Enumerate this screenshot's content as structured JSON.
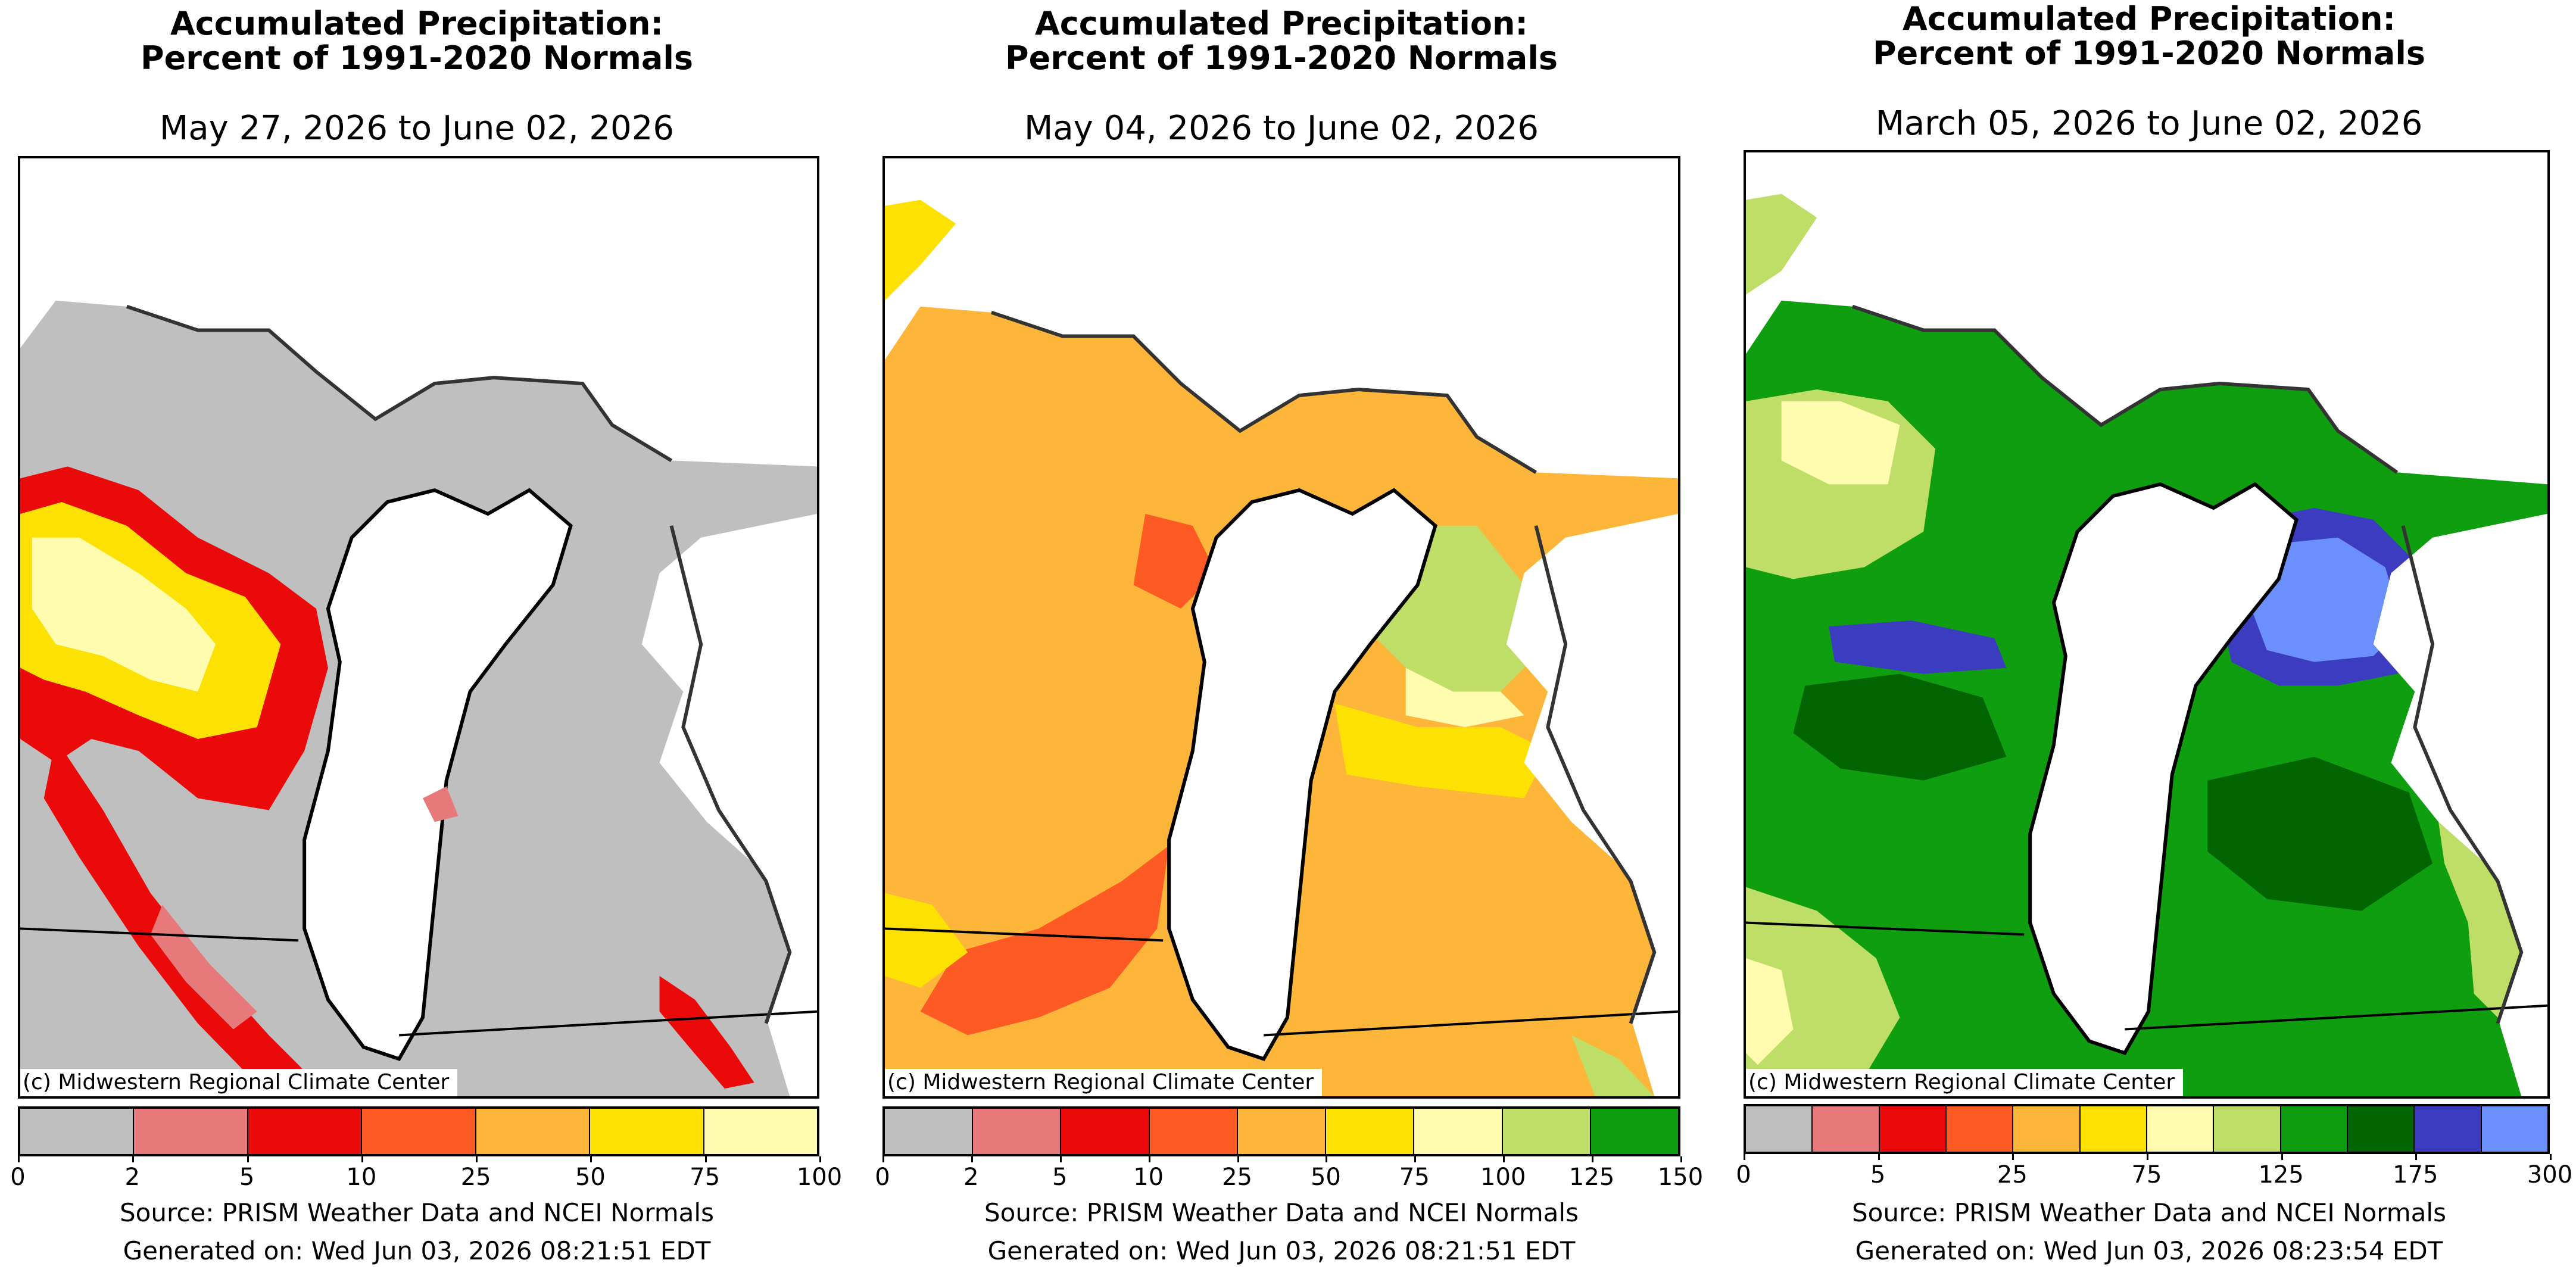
{
  "panels": [
    {
      "title_line1": "Accumulated Precipitation:",
      "title_line2": "Percent of 1991-2020 Normals",
      "date_range": "May 27, 2026 to June 02, 2026",
      "credit": "(c) Midwestern Regional Climate Center",
      "source": "Source: PRISM Weather Data and NCEI Normals",
      "generated": "Generated on: Wed Jun 03, 2026 08:21:51 EDT",
      "colorbar": {
        "colors": [
          "#bfbfbf",
          "#e8797a",
          "#ea0a0a",
          "#fe5b24",
          "#fdb53a",
          "#fde103",
          "#fffcaf"
        ],
        "tick_labels": [
          "0",
          "2",
          "5",
          "10",
          "25",
          "50",
          "75",
          "100"
        ]
      }
    },
    {
      "title_line1": "Accumulated Precipitation:",
      "title_line2": "Percent of 1991-2020 Normals",
      "date_range": "May 04, 2026 to June 02, 2026",
      "credit": "(c) Midwestern Regional Climate Center",
      "source": "Source: PRISM Weather Data and NCEI Normals",
      "generated": "Generated on: Wed Jun 03, 2026 08:21:51 EDT",
      "colorbar": {
        "colors": [
          "#bfbfbf",
          "#e8797a",
          "#ea0a0a",
          "#fe5b24",
          "#fdb53a",
          "#fde103",
          "#fffcaf",
          "#bede68",
          "#0f9e10"
        ],
        "tick_labels": [
          "0",
          "2",
          "5",
          "10",
          "25",
          "50",
          "75",
          "100",
          "125",
          "150"
        ]
      }
    },
    {
      "title_line1": "Accumulated Precipitation:",
      "title_line2": "Percent of 1991-2020 Normals",
      "date_range": "March 05, 2026 to June 02, 2026",
      "credit": "(c) Midwestern Regional Climate Center",
      "source": "Source: PRISM Weather Data and NCEI Normals",
      "generated": "Generated on: Wed Jun 03, 2026 08:23:54 EDT",
      "colorbar": {
        "colors": [
          "#bfbfbf",
          "#e8797a",
          "#ea0a0a",
          "#fe5b24",
          "#fdb53a",
          "#fde103",
          "#fffcaf",
          "#bede68",
          "#0f9e10",
          "#006400",
          "#3c3cc0",
          "#6b8ffc"
        ],
        "tick_labels": [
          "0",
          "5",
          "25",
          "75",
          "125",
          "175",
          "300"
        ],
        "tick_positions_index": [
          0,
          2,
          4,
          6,
          8,
          10,
          12
        ]
      }
    }
  ]
}
